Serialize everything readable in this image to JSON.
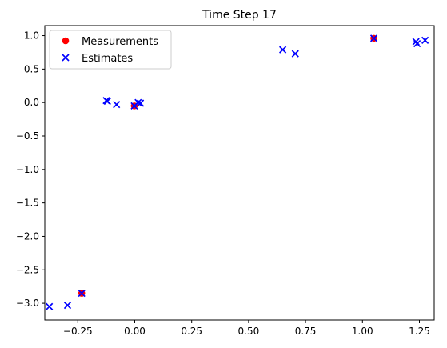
{
  "chart_data": {
    "type": "scatter",
    "title": "Time Step 17",
    "xlabel": "",
    "ylabel": "",
    "xlim": [
      -0.395,
      1.315
    ],
    "ylim": [
      -3.25,
      1.15
    ],
    "xticks": [
      -0.25,
      0.0,
      0.25,
      0.5,
      0.75,
      1.0,
      1.25
    ],
    "xtick_labels": [
      "−0.25",
      "0.00",
      "0.25",
      "0.50",
      "0.75",
      "1.00",
      "1.25"
    ],
    "yticks": [
      -3.0,
      -2.5,
      -2.0,
      -1.5,
      -1.0,
      -0.5,
      0.0,
      0.5,
      1.0
    ],
    "ytick_labels": [
      "−3.0",
      "−2.5",
      "−2.0",
      "−1.5",
      "−1.0",
      "−0.5",
      "0.0",
      "0.5",
      "1.0"
    ],
    "grid": false,
    "legend_position": "upper-left",
    "series": [
      {
        "name": "Measurements",
        "marker": "circle",
        "color": "#ff0000",
        "points": [
          {
            "x": -0.233,
            "y": -2.85
          },
          {
            "x": -0.002,
            "y": -0.05
          },
          {
            "x": 1.05,
            "y": 0.96
          }
        ]
      },
      {
        "name": "Estimates",
        "marker": "x",
        "color": "#0000ff",
        "points": [
          {
            "x": -0.375,
            "y": -3.05
          },
          {
            "x": -0.295,
            "y": -3.03
          },
          {
            "x": -0.233,
            "y": -2.85
          },
          {
            "x": -0.125,
            "y": 0.03
          },
          {
            "x": -0.12,
            "y": 0.02
          },
          {
            "x": -0.08,
            "y": -0.03
          },
          {
            "x": -0.002,
            "y": -0.05
          },
          {
            "x": 0.015,
            "y": 0.0
          },
          {
            "x": 0.025,
            "y": -0.01
          },
          {
            "x": 0.65,
            "y": 0.79
          },
          {
            "x": 0.705,
            "y": 0.73
          },
          {
            "x": 1.05,
            "y": 0.96
          },
          {
            "x": 1.235,
            "y": 0.91
          },
          {
            "x": 1.24,
            "y": 0.88
          },
          {
            "x": 1.275,
            "y": 0.93
          }
        ]
      }
    ]
  }
}
